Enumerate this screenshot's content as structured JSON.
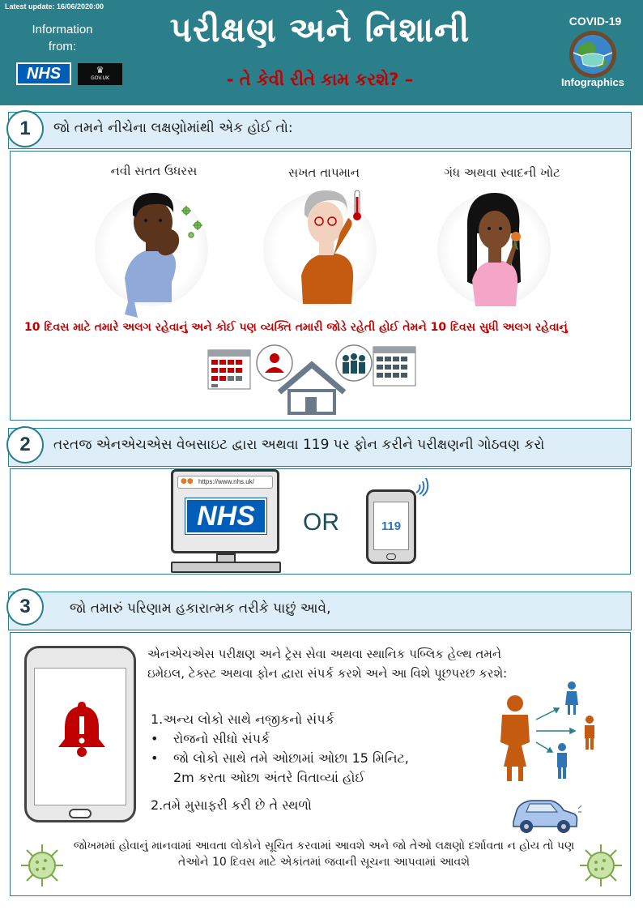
{
  "header": {
    "latest_update": "Latest update: 16/06/2020:00",
    "info_from": "Information from:",
    "nhs_logo_text": "NHS",
    "gov_logo_text": "GOV.UK",
    "title": "પરીક્ષણ અને નિશાની",
    "subtitle": "- તે કેવી રીતે કામ કરશે? –",
    "covid_label": "COVID-19",
    "infographics_label": "Infographics"
  },
  "section1": {
    "number": "1",
    "heading": "જો તમને નીચેના લક્ષણોમાંથી એક હોઈ તો:",
    "symptoms": [
      {
        "label": "નવી સતત ઉધરસ"
      },
      {
        "label": "સખત તાપમાન"
      },
      {
        "label": "ગંધ અથવા સ્વાદની ખોટ"
      }
    ],
    "isolate_text": "10  દિવસ માટે તમારે અલગ રહેવાનું  અને કોઈ પણ વ્યક્તિ તમારી જોડે રહેતી હોઈ તેમને 10 દિવસ સુધી અલગ રહેવાનું"
  },
  "section2": {
    "number": "2",
    "heading": "તરતજ એનએચએસ વેબસાઇટ દ્વારા અથવા 119 પર ફોન કરીને પરીક્ષણની ગોઠવણ કરો",
    "url": "https://www.nhs.uk/",
    "nhs_text": "NHS",
    "or_text": "OR",
    "phone_number": "119"
  },
  "section3": {
    "number": "3",
    "heading": "જો તમારું પરિણામ હકારાત્મક તરીકે પાછું આવે,",
    "intro": "એનએચએસ પરીક્ષણ અને ટ્રેસ સેવા અથવા સ્થાનિક પબ્લિક હેલ્થ તમને ઇમેઇલ, ટેક્સ્ટ અથવા ફોન દ્વારા સંપર્ક કરશે અને આ વિશે પૂછપરછ કરશે:",
    "item1": "1.અન્ય લોકો સાથે નજીકનો સંપર્ક",
    "bullet1": "રોજનો સીધો સંપર્ક",
    "bullet2_line1": "જો લોકો સાથે તમે ઓછામાં ઓછા 15 મિનિટ,",
    "bullet2_line2": "2m કરતા ઓછા અંતરે વિતાવ્યાં હોઈ",
    "bullet_symbol": "•",
    "item2": "2.તમે મુસાફરી કરી છે તે સ્થળો",
    "notify_text": "જોખમમાં હોવાનું માનવામાં આવતા લોકોને સૂચિત કરવામાં આવશે અને જો તેઓ લક્ષણો દર્શાવતા ન હોય તો પણ તેઓને 10 દિવસ માટે એકાંતમાં જવાની સૂચના આપવામાં આવશે"
  },
  "colors": {
    "header_teal": "#2b7f8a",
    "bar_blue": "#ddeef9",
    "alert_red": "#c00000",
    "nhs_blue": "#005eb8",
    "contact_orange": "#c55a11",
    "contact_blue": "#2e75b6"
  }
}
